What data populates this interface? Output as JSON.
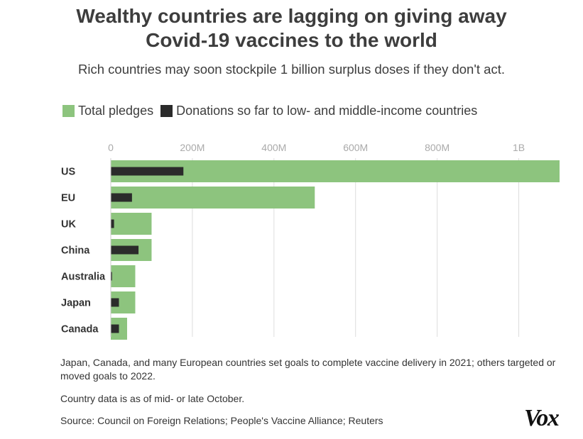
{
  "title_line1": "Wealthy countries are lagging on giving away",
  "title_line2": "Covid-19 vaccines to the world",
  "subtitle": "Rich countries may soon stockpile 1 billion surplus doses if they don't act.",
  "legend": [
    {
      "label": "Total pledges",
      "color": "#8dc47e"
    },
    {
      "label": "Donations so far to low- and middle-income countries",
      "color": "#2b2b2b"
    }
  ],
  "chart_data": {
    "type": "bar",
    "orientation": "horizontal",
    "categories": [
      "US",
      "EU",
      "UK",
      "China",
      "Australia",
      "Japan",
      "Canada"
    ],
    "series": [
      {
        "name": "Total pledges",
        "color": "#8dc47e",
        "values": [
          1100,
          500,
          100,
          100,
          60,
          60,
          40
        ]
      },
      {
        "name": "Donations so far to low- and middle-income countries",
        "color": "#2b2b2b",
        "values": [
          178,
          52,
          8,
          68,
          3,
          20,
          20
        ]
      }
    ],
    "x_ticks": [
      {
        "value": 0,
        "label": "0"
      },
      {
        "value": 200,
        "label": "200M"
      },
      {
        "value": 400,
        "label": "400M"
      },
      {
        "value": 600,
        "label": "600M"
      },
      {
        "value": 800,
        "label": "800M"
      },
      {
        "value": 1000,
        "label": "1B"
      }
    ],
    "xlim": [
      0,
      1100
    ],
    "grid": true
  },
  "notes": {
    "note1": "Japan, Canada, and many European countries set goals to complete vaccine delivery in 2021; others targeted or moved goals to 2022.",
    "note2": "Country data is as of mid- or late October.",
    "source": "Source: Council on Foreign Relations; People's Vaccine Alliance; Reuters"
  },
  "logo": "Vox"
}
